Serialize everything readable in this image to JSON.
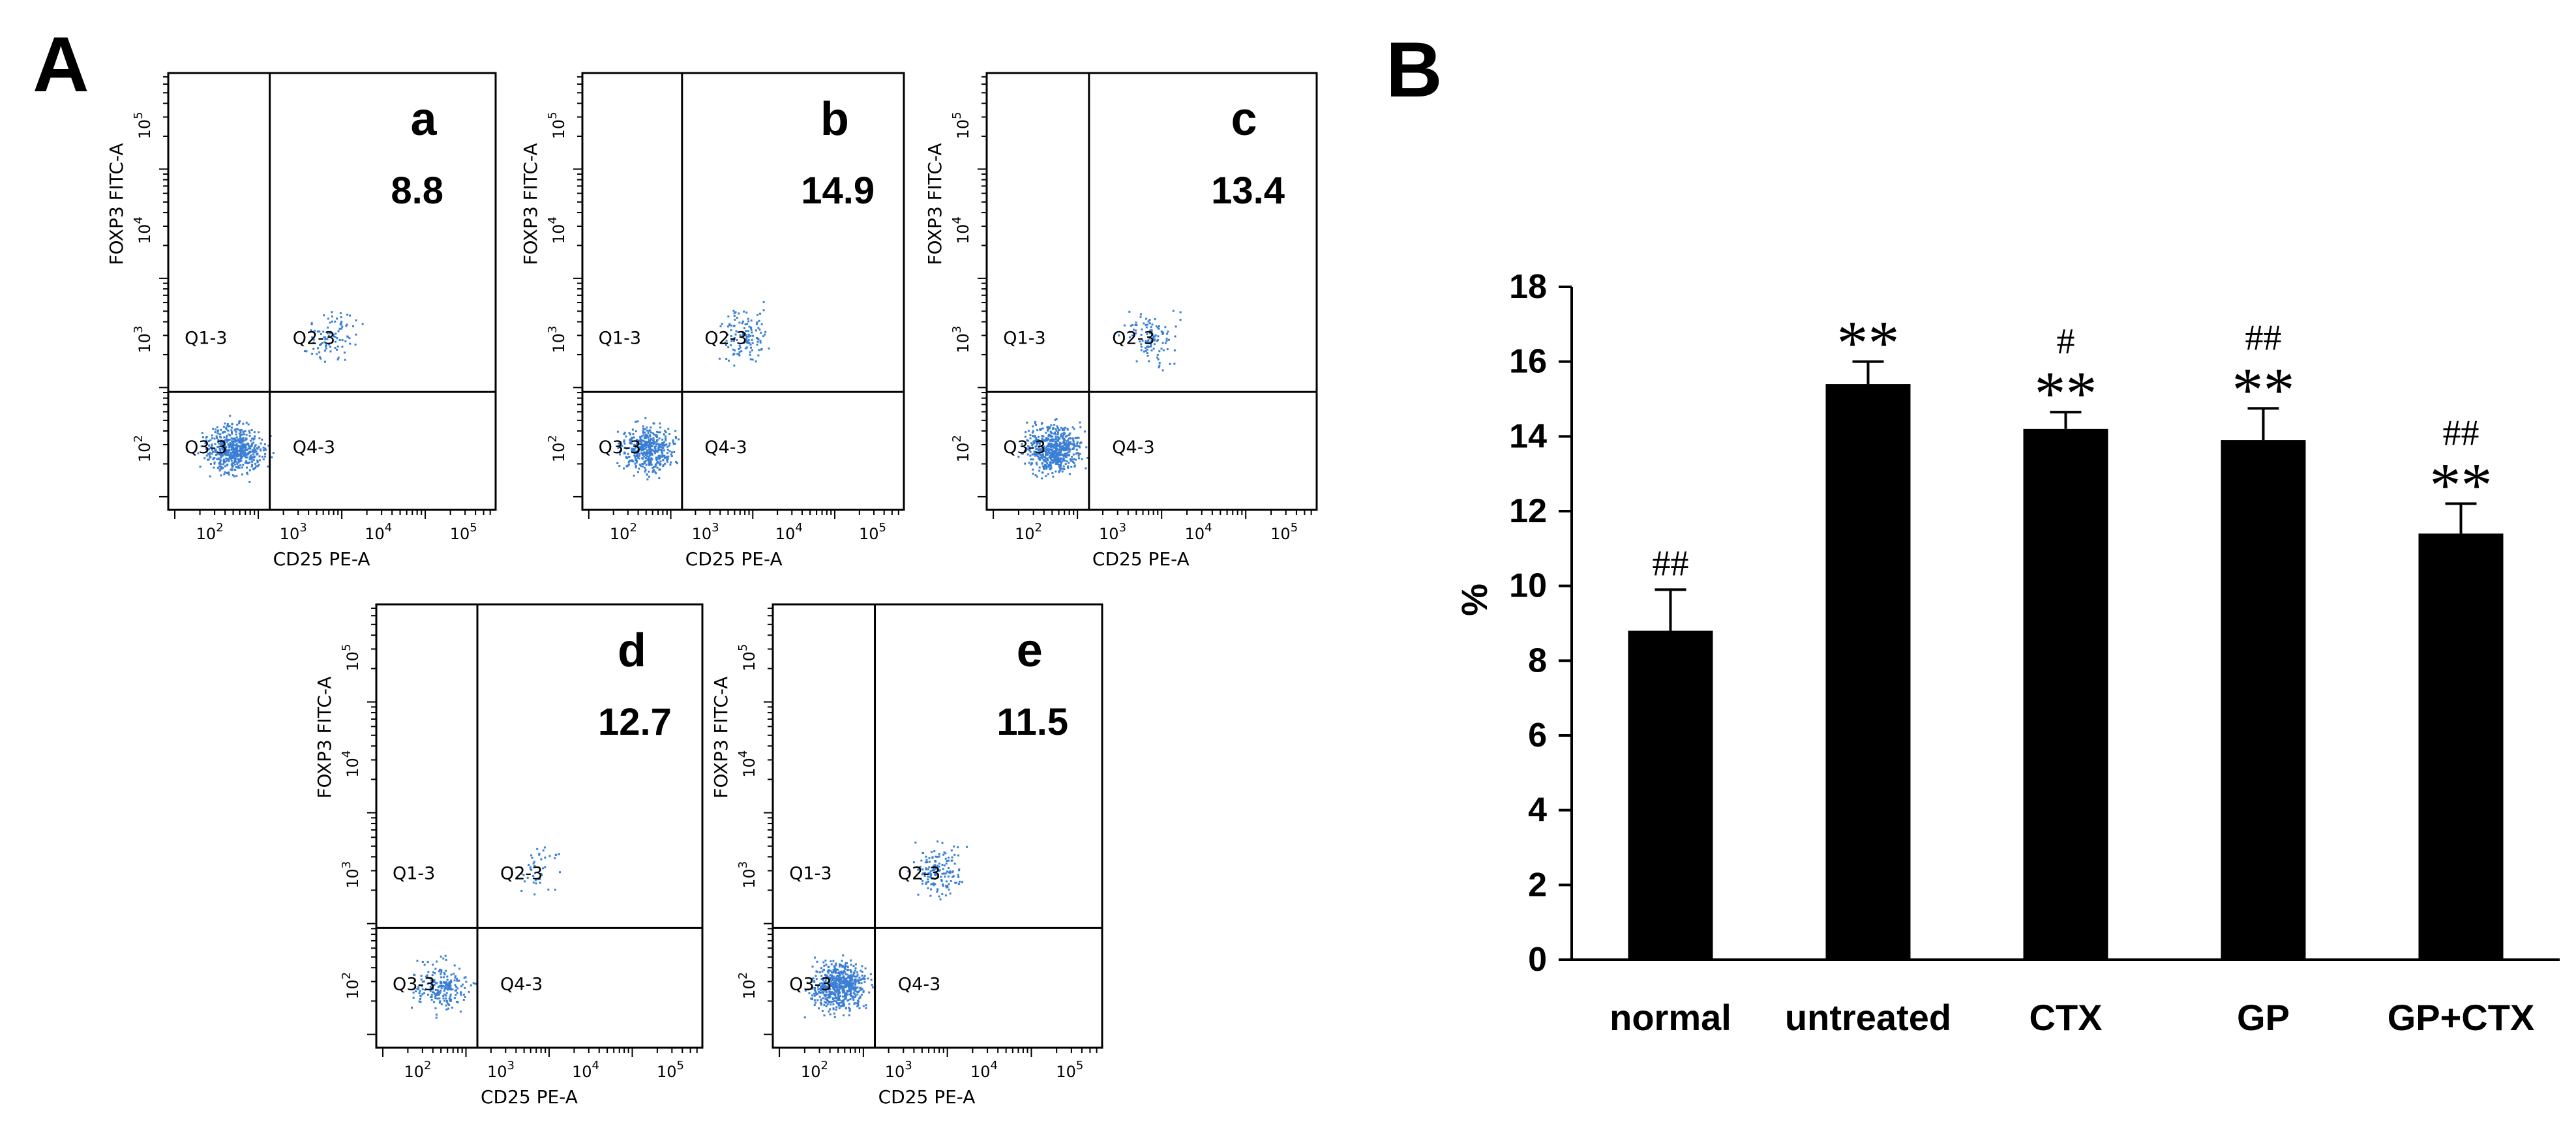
{
  "panel_labels": {
    "a": "A",
    "b": "B"
  },
  "flow": {
    "x_axis_label": "CD25 PE-A",
    "y_axis_label": "FOXP3 FITC-A",
    "decade_exponents": [
      "2",
      "3",
      "4",
      "5"
    ],
    "decade_base": "10",
    "quadrants": [
      "Q1-3",
      "Q2-3",
      "Q3-3",
      "Q4-3"
    ],
    "point_color": "#3a7fd5",
    "plots": [
      {
        "letter": "a",
        "value": "8.8",
        "cells": 650,
        "q2_cells": 90
      },
      {
        "letter": "b",
        "value": "14.9",
        "cells": 600,
        "q2_cells": 130
      },
      {
        "letter": "c",
        "value": "13.4",
        "cells": 700,
        "q2_cells": 110
      },
      {
        "letter": "d",
        "value": "12.7",
        "cells": 260,
        "q2_cells": 45
      },
      {
        "letter": "e",
        "value": "11.5",
        "cells": 750,
        "q2_cells": 150
      }
    ]
  },
  "chart_data": {
    "type": "bar",
    "title": "",
    "xlabel": "",
    "ylabel": "%",
    "ylim": [
      0,
      18
    ],
    "yticks": [
      0,
      2,
      4,
      6,
      8,
      10,
      12,
      14,
      16,
      18
    ],
    "categories": [
      "normal",
      "untreated",
      "CTX",
      "GP",
      "GP+CTX"
    ],
    "values": [
      8.8,
      15.4,
      14.2,
      13.9,
      11.4
    ],
    "errors": [
      1.1,
      0.6,
      0.45,
      0.85,
      0.8
    ],
    "significance_vs_normal": [
      "",
      "**",
      "**",
      "**",
      "**"
    ],
    "significance_vs_untreated": [
      "##",
      "",
      "#",
      "##",
      "##"
    ],
    "bar_color": "#000000"
  }
}
